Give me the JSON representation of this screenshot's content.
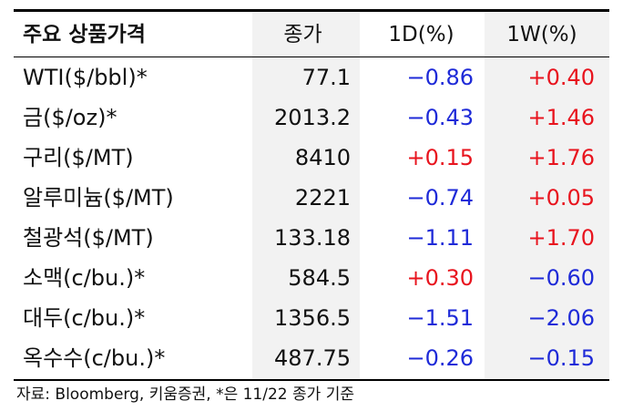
{
  "table": {
    "headers": [
      "주요 상품가격",
      "종가",
      "1D(%)",
      "1W(%)"
    ],
    "rows": [
      {
        "name": "WTI($/bbl)*",
        "close": "77.1",
        "d1": "−0.86",
        "w1": "+0.40"
      },
      {
        "name": "금($/oz)*",
        "close": "2013.2",
        "d1": "−0.43",
        "w1": "+1.46"
      },
      {
        "name": "구리($/MT)",
        "close": "8410",
        "d1": "+0.15",
        "w1": "+1.76"
      },
      {
        "name": "알루미늄($/MT)",
        "close": "2221",
        "d1": "−0.74",
        "w1": "+0.05"
      },
      {
        "name": "철광석($/MT)",
        "close": "133.18",
        "d1": "−1.11",
        "w1": "+1.70"
      },
      {
        "name": "소맥(c/bu.)*",
        "close": "584.5",
        "d1": "+0.30",
        "w1": "−0.60"
      },
      {
        "name": "대두(c/bu.)*",
        "close": "1356.5",
        "d1": "−1.51",
        "w1": "−2.06"
      },
      {
        "name": "옥수수(c/bu.)*",
        "close": "487.75",
        "d1": "−0.26",
        "w1": "−0.15"
      }
    ]
  },
  "source": "자료: Bloomberg, 키움증권, *은 11/22 종가 기준",
  "colors": {
    "positive": "#e8141e",
    "negative": "#1e2ad8",
    "shade": "#f2f2f2"
  }
}
